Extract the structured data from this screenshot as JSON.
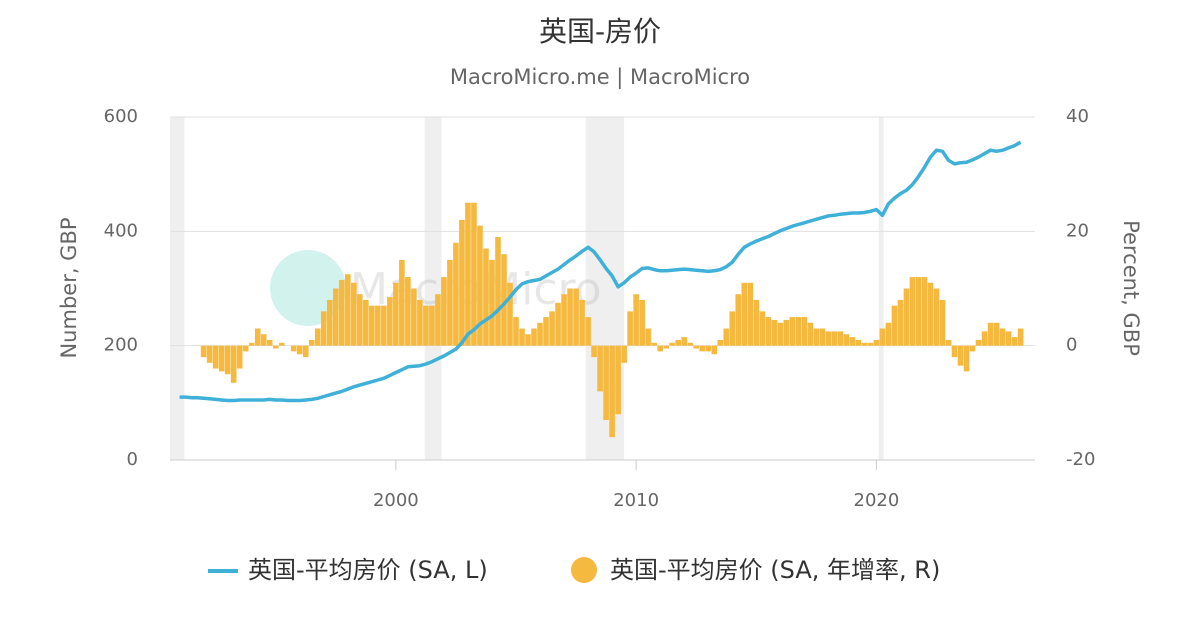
{
  "chart_data": {
    "type": "line-bar",
    "title": "英国-房价",
    "subtitle": "MacroMicro.me | MacroMicro",
    "watermark": "MacroMicro",
    "y_label": "Number, GBP",
    "y2_label": "Percent, GBP",
    "xlim": [
      1990.6,
      2026.6
    ],
    "xticks": [
      2000,
      2010,
      2020
    ],
    "ylim": [
      0,
      600
    ],
    "yticks": [
      0,
      200,
      400,
      600
    ],
    "y2lim": [
      -20,
      40
    ],
    "y2ticks": [
      -20,
      0,
      20,
      40
    ],
    "grid": true,
    "shaded_periods": [
      [
        1990.6,
        1991.2
      ],
      [
        2001.2,
        2001.9
      ],
      [
        2007.9,
        2009.5
      ],
      [
        2020.1,
        2020.3
      ]
    ],
    "x": [
      1991,
      1991.25,
      1991.5,
      1991.75,
      1992,
      1992.25,
      1992.5,
      1992.75,
      1993,
      1993.25,
      1993.5,
      1993.75,
      1994,
      1994.25,
      1994.5,
      1994.75,
      1995,
      1995.25,
      1995.5,
      1995.75,
      1996,
      1996.25,
      1996.5,
      1996.75,
      1997,
      1997.25,
      1997.5,
      1997.75,
      1998,
      1998.25,
      1998.5,
      1998.75,
      1999,
      1999.25,
      1999.5,
      1999.75,
      2000,
      2000.25,
      2000.5,
      2000.75,
      2001,
      2001.25,
      2001.5,
      2001.75,
      2002,
      2002.25,
      2002.5,
      2002.75,
      2003,
      2003.25,
      2003.5,
      2003.75,
      2004,
      2004.25,
      2004.5,
      2004.75,
      2005,
      2005.25,
      2005.5,
      2005.75,
      2006,
      2006.25,
      2006.5,
      2006.75,
      2007,
      2007.25,
      2007.5,
      2007.75,
      2008,
      2008.25,
      2008.5,
      2008.75,
      2009,
      2009.25,
      2009.5,
      2009.75,
      2010,
      2010.25,
      2010.5,
      2010.75,
      2011,
      2011.25,
      2011.5,
      2011.75,
      2012,
      2012.25,
      2012.5,
      2012.75,
      2013,
      2013.25,
      2013.5,
      2013.75,
      2014,
      2014.25,
      2014.5,
      2014.75,
      2015,
      2015.25,
      2015.5,
      2015.75,
      2016,
      2016.25,
      2016.5,
      2016.75,
      2017,
      2017.25,
      2017.5,
      2017.75,
      2018,
      2018.25,
      2018.5,
      2018.75,
      2019,
      2019.25,
      2019.5,
      2019.75,
      2020,
      2020.25,
      2020.5,
      2020.75,
      2021,
      2021.25,
      2021.5,
      2021.75,
      2022,
      2022.25,
      2022.5,
      2022.75,
      2023,
      2023.25,
      2023.5,
      2023.75,
      2024,
      2024.25,
      2024.5,
      2024.75,
      2025,
      2025.25,
      2025.5,
      2025.75,
      2026
    ],
    "series": [
      {
        "name": "英国-平均房价 (SA, L)",
        "type": "line",
        "color": "#3fb0d8",
        "values": [
          110,
          110,
          109,
          109,
          108,
          107,
          106,
          105,
          104,
          104,
          105,
          105,
          105,
          105,
          105,
          106,
          105,
          105,
          104,
          104,
          104,
          105,
          106,
          108,
          111,
          114,
          117,
          120,
          124,
          128,
          131,
          134,
          137,
          140,
          143,
          148,
          153,
          158,
          163,
          164,
          165,
          168,
          172,
          177,
          182,
          188,
          194,
          205,
          220,
          228,
          238,
          245,
          252,
          262,
          273,
          285,
          298,
          308,
          312,
          314,
          316,
          322,
          328,
          334,
          342,
          350,
          357,
          365,
          372,
          364,
          350,
          335,
          322,
          303,
          310,
          320,
          327,
          335,
          336,
          333,
          331,
          331,
          332,
          333,
          334,
          333,
          332,
          331,
          330,
          331,
          333,
          338,
          346,
          360,
          372,
          378,
          383,
          387,
          391,
          396,
          401,
          405,
          409,
          412,
          415,
          418,
          421,
          424,
          427,
          428,
          430,
          431,
          432,
          432,
          433,
          435,
          438,
          428,
          448,
          458,
          466,
          472,
          482,
          496,
          512,
          530,
          542,
          540,
          524,
          518,
          520,
          521,
          525,
          530,
          536,
          542,
          540,
          542,
          546,
          550,
          556
        ]
      },
      {
        "name": "英国-平均房价 (SA, 年增率, R)",
        "type": "bar",
        "axis": "y2",
        "color": "#f5b940",
        "values": [
          null,
          null,
          null,
          null,
          -2,
          -3,
          -4,
          -4.5,
          -5,
          -6.5,
          -4,
          -1,
          0.5,
          3,
          2,
          1,
          -0.5,
          0.5,
          0,
          -1,
          -1.5,
          -2,
          1,
          3,
          6,
          8,
          10,
          11.5,
          12.5,
          11,
          9,
          8,
          7,
          7,
          7,
          8.5,
          11,
          15,
          12,
          10,
          8,
          7,
          7,
          9,
          12,
          15,
          18,
          22,
          25,
          25,
          21,
          17,
          15,
          19,
          16,
          11,
          5,
          3,
          2,
          3,
          4,
          5,
          6,
          7.5,
          9,
          10,
          10,
          8,
          5,
          -2,
          -8,
          -13,
          -16,
          -12,
          -3,
          6,
          9,
          8,
          3,
          0.5,
          -1,
          -0.5,
          0.5,
          1,
          1.5,
          0.5,
          -0.5,
          -1,
          -1,
          -1.5,
          1,
          3,
          6,
          9,
          11,
          11,
          8,
          6,
          5,
          4.5,
          4,
          4.5,
          5,
          5,
          5,
          4,
          3,
          3,
          2.5,
          2.5,
          2.5,
          2,
          1.5,
          1,
          0.5,
          0.5,
          1,
          3,
          4,
          7,
          8,
          10,
          12,
          12,
          12,
          11,
          10,
          8,
          1,
          -2,
          -3.5,
          -4.5,
          -1,
          1,
          2.5,
          4,
          4,
          3,
          2.5,
          1.5,
          3
        ]
      }
    ]
  }
}
